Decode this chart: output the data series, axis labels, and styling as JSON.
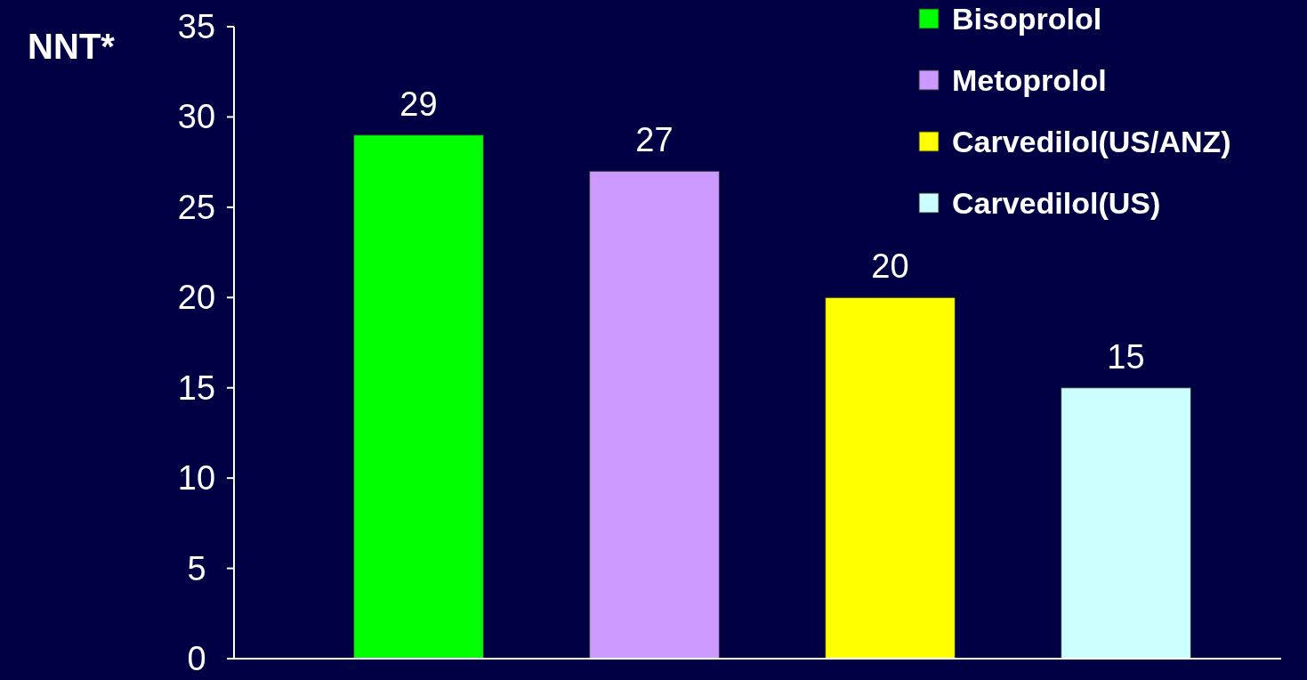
{
  "chart_data": {
    "type": "bar",
    "ylabel": "NNT*",
    "categories": [
      null,
      null,
      null,
      null
    ],
    "series": [
      {
        "name": "Bisoprolol",
        "color": "#00ff00",
        "values": [
          29,
          null,
          null,
          null
        ]
      },
      {
        "name": "Metoprolol",
        "color": "#cc99ff",
        "values": [
          null,
          27,
          null,
          null
        ]
      },
      {
        "name": "Carvedilol(US/ANZ)",
        "color": "#ffff00",
        "values": [
          null,
          null,
          20,
          null
        ]
      },
      {
        "name": "Carvedilol(US)",
        "color": "#ccffff",
        "values": [
          null,
          null,
          null,
          15
        ]
      }
    ],
    "ylim": [
      0,
      35
    ],
    "yticks": [
      0,
      5,
      10,
      15,
      20,
      25,
      30,
      35
    ],
    "data_labels": true,
    "legend": "top right",
    "grid": false
  }
}
